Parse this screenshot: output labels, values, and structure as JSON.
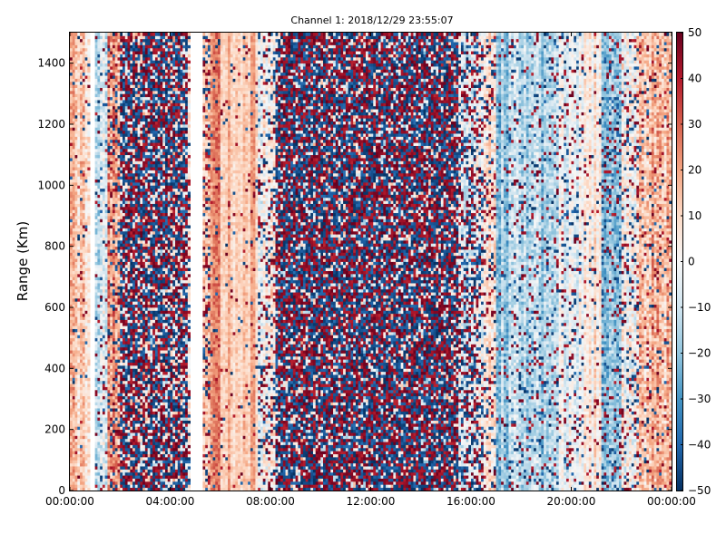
{
  "chart_data": {
    "type": "heatmap",
    "title": "Channel 1: 2018/12/29 23:55:07",
    "xlabel": "",
    "ylabel": "Range (Km)",
    "ylim": [
      0,
      1500
    ],
    "x_ticks": [
      "00:00:00",
      "04:00:00",
      "08:00:00",
      "12:00:00",
      "16:00:00",
      "20:00:00",
      "00:00:00"
    ],
    "y_ticks": [
      0,
      200,
      400,
      600,
      800,
      1000,
      1200,
      1400
    ],
    "colorbar": {
      "colormap": "RdBu_r",
      "range": [
        -50,
        50
      ],
      "ticks": [
        50,
        40,
        30,
        20,
        10,
        0,
        -10,
        -20,
        -30,
        -40,
        -50
      ]
    },
    "data_gaps": [
      {
        "from": "04:48:00",
        "to": "05:18:00"
      },
      {
        "from": "00:51:00",
        "to": "01:02:00"
      }
    ],
    "time_bands": [
      {
        "from": "00:00",
        "to": "01:00",
        "mean": 12,
        "spread": 10,
        "noise": 0.05
      },
      {
        "from": "01:00",
        "to": "01:30",
        "mean": -8,
        "spread": 12,
        "noise": 0.1
      },
      {
        "from": "01:30",
        "to": "02:00",
        "mean": 22,
        "spread": 12,
        "noise": 0.25
      },
      {
        "from": "02:00",
        "to": "04:45",
        "mean": 0,
        "spread": 15,
        "noise": 0.75
      },
      {
        "from": "05:20",
        "to": "05:35",
        "mean": 8,
        "spread": 10,
        "noise": 0.3
      },
      {
        "from": "05:35",
        "to": "06:00",
        "mean": 28,
        "spread": 8,
        "noise": 0.05
      },
      {
        "from": "06:00",
        "to": "07:30",
        "mean": 15,
        "spread": 6,
        "noise": 0.05
      },
      {
        "from": "07:30",
        "to": "08:15",
        "mean": 2,
        "spread": 12,
        "noise": 0.25
      },
      {
        "from": "08:15",
        "to": "15:30",
        "mean": 0,
        "spread": 15,
        "noise": 0.82
      },
      {
        "from": "15:30",
        "to": "16:30",
        "mean": -2,
        "spread": 12,
        "noise": 0.45
      },
      {
        "from": "16:30",
        "to": "17:00",
        "mean": 5,
        "spread": 10,
        "noise": 0.2
      },
      {
        "from": "17:00",
        "to": "17:30",
        "mean": -18,
        "spread": 10,
        "noise": 0.08
      },
      {
        "from": "17:30",
        "to": "19:30",
        "mean": -14,
        "spread": 10,
        "noise": 0.15
      },
      {
        "from": "19:30",
        "to": "20:30",
        "mean": -3,
        "spread": 8,
        "noise": 0.15
      },
      {
        "from": "20:30",
        "to": "21:10",
        "mean": 5,
        "spread": 8,
        "noise": 0.08
      },
      {
        "from": "21:10",
        "to": "22:00",
        "mean": -22,
        "spread": 10,
        "noise": 0.2
      },
      {
        "from": "22:00",
        "to": "22:40",
        "mean": 2,
        "spread": 14,
        "noise": 0.2
      },
      {
        "from": "22:40",
        "to": "24:00",
        "mean": 16,
        "spread": 12,
        "noise": 0.1
      }
    ],
    "colors": {
      "low": "#053061",
      "mid": "#f7f7f7",
      "high": "#67001f"
    }
  }
}
